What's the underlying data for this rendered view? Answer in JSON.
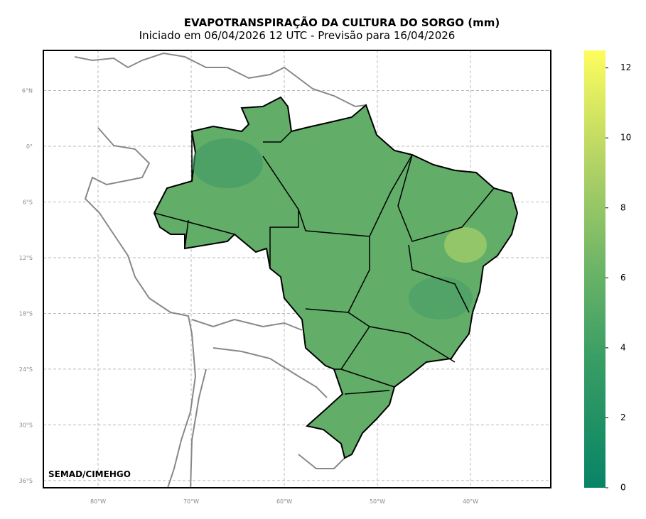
{
  "header": {
    "title": "EVAPOTRANSPIRAÇÃO DA CULTURA DO SORGO (mm)",
    "subtitle": "Iniciado em 06/04/2026 12 UTC - Previsão para 16/04/2026"
  },
  "map": {
    "credit": "SEMAD/CIMEHGO",
    "lat_ticks": [
      {
        "value": 6,
        "label": "6°N"
      },
      {
        "value": 0,
        "label": "0°"
      },
      {
        "value": -6,
        "label": "6°S"
      },
      {
        "value": -12,
        "label": "12°S"
      },
      {
        "value": -18,
        "label": "18°S"
      },
      {
        "value": -24,
        "label": "24°S"
      },
      {
        "value": -30,
        "label": "30°S"
      },
      {
        "value": -36,
        "label": "36°S"
      }
    ],
    "lon_ticks": [
      {
        "value": -80,
        "label": "80°W"
      },
      {
        "value": -70,
        "label": "70°W"
      },
      {
        "value": -60,
        "label": "60°W"
      },
      {
        "value": -50,
        "label": "50°W"
      },
      {
        "value": -40,
        "label": "40°W"
      }
    ]
  },
  "colorbar": {
    "lim": [
      0,
      12.5
    ],
    "ticks": [
      0,
      2,
      4,
      6,
      8,
      10,
      12
    ]
  }
}
